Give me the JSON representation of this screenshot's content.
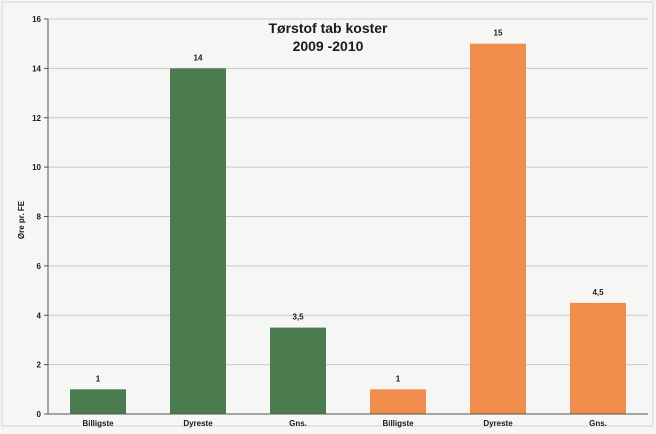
{
  "chart_data": {
    "type": "bar",
    "title": "Tørstof tab koster",
    "subtitle": "2009 -2010",
    "xlabel": "",
    "ylabel": "Øre pr. FE",
    "ylim": [
      0,
      16
    ],
    "yticks": [
      "0",
      "2",
      "4",
      "6",
      "8",
      "10",
      "12",
      "14",
      "16"
    ],
    "grid": true,
    "legend": "none",
    "categories": [
      "Billigste",
      "Dyreste",
      "Gns.",
      "Billigste",
      "Dyreste",
      "Gns."
    ],
    "values": [
      1,
      14,
      3.5,
      1,
      15,
      4.5
    ],
    "data_labels": [
      "1",
      "14",
      "3,5",
      "1",
      "15",
      "4,5"
    ],
    "colors": [
      "#4a7c50",
      "#4a7c50",
      "#4a7c50",
      "#f08c4c",
      "#f08c4c",
      "#f08c4c"
    ]
  }
}
